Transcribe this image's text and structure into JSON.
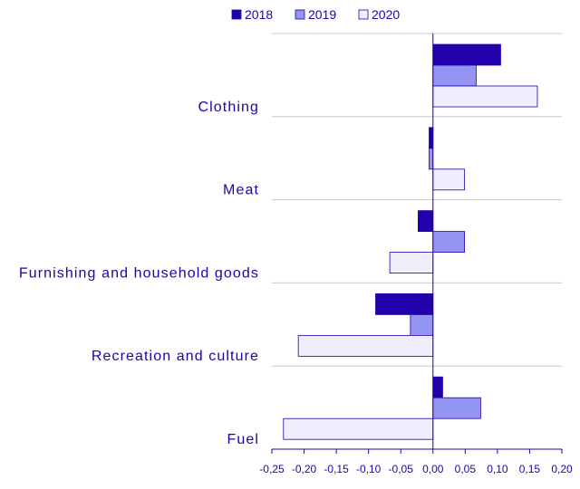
{
  "chart_data": {
    "type": "bar",
    "orientation": "horizontal",
    "title": "",
    "xlabel": "",
    "ylabel": "",
    "categories": [
      "Clothing",
      "Meat",
      "Furnishing and household goods",
      "Recreation and culture",
      "Fuel"
    ],
    "series": [
      {
        "name": "2018",
        "values": [
          0.105,
          -0.006,
          -0.023,
          -0.089,
          0.015
        ],
        "color": "#2200aa"
      },
      {
        "name": "2019",
        "values": [
          0.067,
          -0.006,
          0.049,
          -0.035,
          0.074
        ],
        "color": "#9495f2"
      },
      {
        "name": "2020",
        "values": [
          0.162,
          0.049,
          -0.067,
          -0.209,
          -0.232
        ],
        "color": "#eeeefc"
      }
    ],
    "xlim": [
      -0.25,
      0.2
    ],
    "xticks": [
      "-0,25",
      "-0,20",
      "-0,15",
      "-0,10",
      "-0,05",
      "0,00",
      "0,05",
      "0,10",
      "0,15",
      "0,20"
    ],
    "legend_position": "top",
    "grid": true,
    "text_color": "#2200aa",
    "grid_color": "#c8c8c8",
    "axis_color": "#2200aa"
  }
}
